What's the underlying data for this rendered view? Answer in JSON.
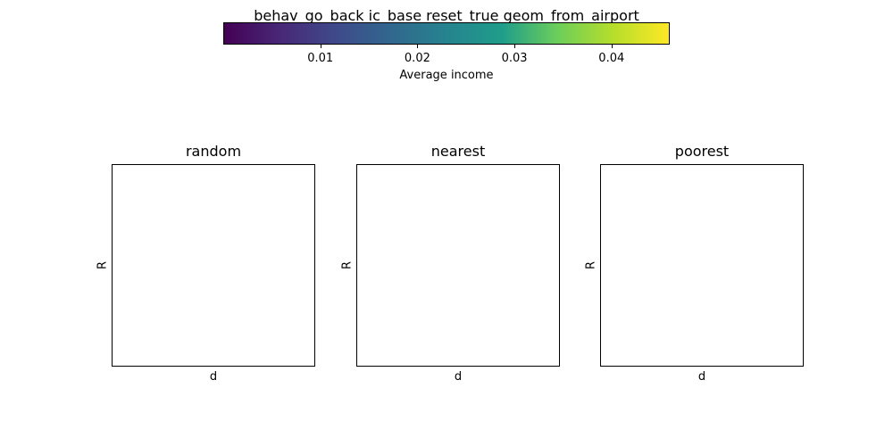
{
  "figure": {
    "title": "behav_go_back ic_base reset_true geom_from_airport"
  },
  "colorbar": {
    "label": "Average income",
    "colormap": "viridis",
    "range": [
      0.0,
      0.046
    ],
    "ticks": [
      {
        "value": 0.01,
        "label": "0.01"
      },
      {
        "value": 0.02,
        "label": "0.02"
      },
      {
        "value": 0.03,
        "label": "0.03"
      },
      {
        "value": 0.04,
        "label": "0.04"
      }
    ],
    "colors": [
      "#440154",
      "#482777",
      "#3f4a8a",
      "#31678e",
      "#26838f",
      "#1f9d8a",
      "#6cce5a",
      "#b6de2b",
      "#fee825"
    ]
  },
  "chart_data": [
    {
      "type": "heatmap",
      "title": "random",
      "xlabel": "d",
      "ylabel": "R",
      "values": []
    },
    {
      "type": "heatmap",
      "title": "nearest",
      "xlabel": "d",
      "ylabel": "R",
      "values": []
    },
    {
      "type": "heatmap",
      "title": "poorest",
      "xlabel": "d",
      "ylabel": "R",
      "values": []
    }
  ]
}
